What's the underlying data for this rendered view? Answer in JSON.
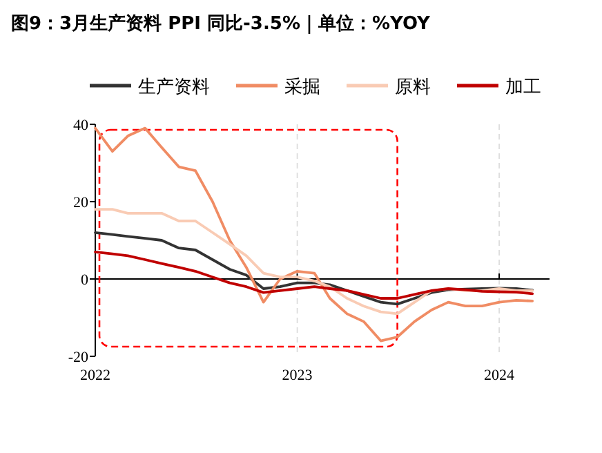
{
  "chart_data": {
    "type": "line",
    "title": "图9：3月生产资料 PPI 同比-3.5%｜单位：%YOY",
    "x": [
      "2022-01",
      "2022-02",
      "2022-03",
      "2022-04",
      "2022-05",
      "2022-06",
      "2022-07",
      "2022-08",
      "2022-09",
      "2022-10",
      "2022-11",
      "2022-12",
      "2023-01",
      "2023-02",
      "2023-03",
      "2023-04",
      "2023-05",
      "2023-06",
      "2023-07",
      "2023-08",
      "2023-09",
      "2023-10",
      "2023-11",
      "2023-12",
      "2024-01",
      "2024-02",
      "2024-03"
    ],
    "series": [
      {
        "name": "生产资料",
        "color": "#333333",
        "values": [
          12,
          11.5,
          11,
          10.5,
          10,
          8,
          7.5,
          5,
          2.5,
          1,
          -2.5,
          -2,
          -1,
          -1,
          -1.5,
          -3,
          -4.5,
          -6,
          -6.5,
          -5,
          -3.5,
          -2.8,
          -2.6,
          -2.5,
          -2.4,
          -2.5,
          -2.9
        ]
      },
      {
        "name": "采掘",
        "color": "#f08c64",
        "values": [
          39,
          33,
          37,
          39,
          34,
          29,
          28,
          20,
          10,
          3,
          -6,
          0,
          2,
          1.5,
          -5,
          -9,
          -11,
          -16,
          -15,
          -11,
          -8,
          -6,
          -7,
          -7,
          -6,
          -5.5,
          -5.7
        ]
      },
      {
        "name": "原料",
        "color": "#f9cbb4",
        "values": [
          18,
          18,
          17,
          17,
          17,
          15,
          15,
          12,
          9,
          6,
          1.5,
          0.5,
          0.5,
          -0.5,
          -2,
          -5,
          -7,
          -8.5,
          -9,
          -6,
          -3,
          -2.5,
          -3,
          -3,
          -2.5,
          -3,
          -3
        ]
      },
      {
        "name": "加工",
        "color": "#c00000",
        "values": [
          7,
          6.5,
          6,
          5,
          4,
          3,
          2,
          0.5,
          -1,
          -2,
          -3.5,
          -3,
          -2.5,
          -2,
          -2.5,
          -3,
          -4,
          -5,
          -5,
          -4,
          -3,
          -2.5,
          -2.8,
          -3.2,
          -3.3,
          -3.4,
          -3.8
        ]
      }
    ],
    "xlim": [
      "2022-01",
      "2024-04"
    ],
    "xticks": [
      "2022",
      "2023",
      "2024"
    ],
    "ylim": [
      -20,
      40
    ],
    "yticks": [
      -20,
      0,
      20,
      40
    ],
    "grid": "x",
    "legend": "top",
    "marker": "none",
    "line_style": "solid"
  }
}
